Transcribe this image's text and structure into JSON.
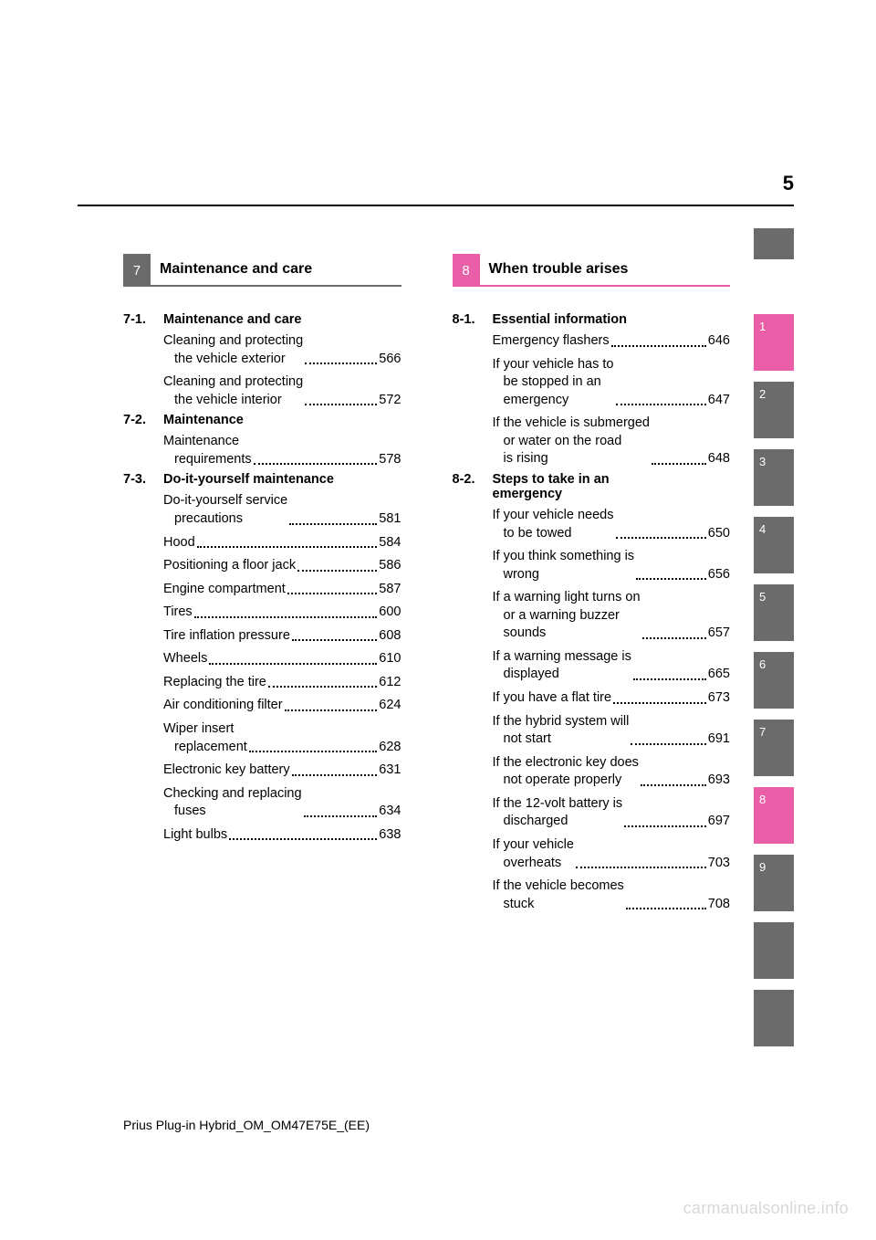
{
  "page_number": "5",
  "footer": "Prius Plug-in Hybrid_OM_OM47E75E_(EE)",
  "watermark": "carmanualsonline.info",
  "left": {
    "chapter_num": "7",
    "chapter_title": "Maintenance and care",
    "sections": [
      {
        "num": "7-1.",
        "title": "Maintenance and care",
        "items": [
          {
            "label": "Cleaning and protecting",
            "cont": "the vehicle exterior",
            "page": "566"
          },
          {
            "label": "Cleaning and protecting",
            "cont": "the vehicle interior",
            "page": "572"
          }
        ]
      },
      {
        "num": "7-2.",
        "title": "Maintenance",
        "items": [
          {
            "label": "Maintenance",
            "cont": "requirements",
            "page": "578"
          }
        ]
      },
      {
        "num": "7-3.",
        "title": "Do-it-yourself maintenance",
        "items": [
          {
            "label": "Do-it-yourself service",
            "cont": "precautions",
            "page": "581"
          },
          {
            "label": "Hood",
            "page": "584"
          },
          {
            "label": "Positioning a floor jack",
            "page": "586"
          },
          {
            "label": "Engine compartment",
            "page": "587"
          },
          {
            "label": "Tires",
            "page": "600"
          },
          {
            "label": "Tire inflation pressure",
            "page": "608"
          },
          {
            "label": "Wheels",
            "page": "610"
          },
          {
            "label": "Replacing the tire",
            "page": "612"
          },
          {
            "label": "Air conditioning filter",
            "page": "624"
          },
          {
            "label": "Wiper insert",
            "cont": "replacement",
            "page": "628"
          },
          {
            "label": "Electronic key battery",
            "page": "631"
          },
          {
            "label": "Checking and replacing",
            "cont": "fuses",
            "page": "634"
          },
          {
            "label": "Light bulbs",
            "page": "638"
          }
        ]
      }
    ]
  },
  "right": {
    "chapter_num": "8",
    "chapter_title": "When trouble arises",
    "sections": [
      {
        "num": "8-1.",
        "title": "Essential information",
        "items": [
          {
            "label": "Emergency flashers",
            "page": "646"
          },
          {
            "label": "If your vehicle has to",
            "cont": "be stopped in an",
            "cont2": "emergency",
            "page": "647"
          },
          {
            "label": "If the vehicle is submerged",
            "cont": "or water on the road",
            "cont2": "is rising",
            "page": "648"
          }
        ]
      },
      {
        "num": "8-2.",
        "title": "Steps to take in an",
        "title_cont": "emergency",
        "items": [
          {
            "label": "If your vehicle needs",
            "cont": "to be towed",
            "page": "650"
          },
          {
            "label": "If you think something is",
            "cont": "wrong",
            "page": "656"
          },
          {
            "label": "If a warning light turns on",
            "cont": "or a warning buzzer",
            "cont2": "sounds",
            "page": "657"
          },
          {
            "label": "If a warning message is",
            "cont": "displayed",
            "page": "665"
          },
          {
            "label": "If you have a flat tire",
            "page": "673"
          },
          {
            "label": "If the hybrid system will",
            "cont": "not start",
            "page": "691"
          },
          {
            "label": "If the electronic key does",
            "cont": "not operate properly",
            "page": "693"
          },
          {
            "label": "If the 12-volt battery is",
            "cont": "discharged",
            "page": "697"
          },
          {
            "label": "If your vehicle",
            "cont": "overheats",
            "page": "703"
          },
          {
            "label": "If the vehicle becomes",
            "cont": "stuck",
            "page": "708"
          }
        ]
      }
    ]
  },
  "tabs": [
    {
      "label": "1",
      "style": "active-pink"
    },
    {
      "label": "2",
      "style": ""
    },
    {
      "label": "3",
      "style": ""
    },
    {
      "label": "4",
      "style": ""
    },
    {
      "label": "5",
      "style": ""
    },
    {
      "label": "6",
      "style": ""
    },
    {
      "label": "7",
      "style": ""
    },
    {
      "label": "8",
      "style": "active-pink"
    },
    {
      "label": "9",
      "style": ""
    },
    {
      "label": "",
      "style": "empty"
    },
    {
      "label": "",
      "style": "empty"
    }
  ]
}
